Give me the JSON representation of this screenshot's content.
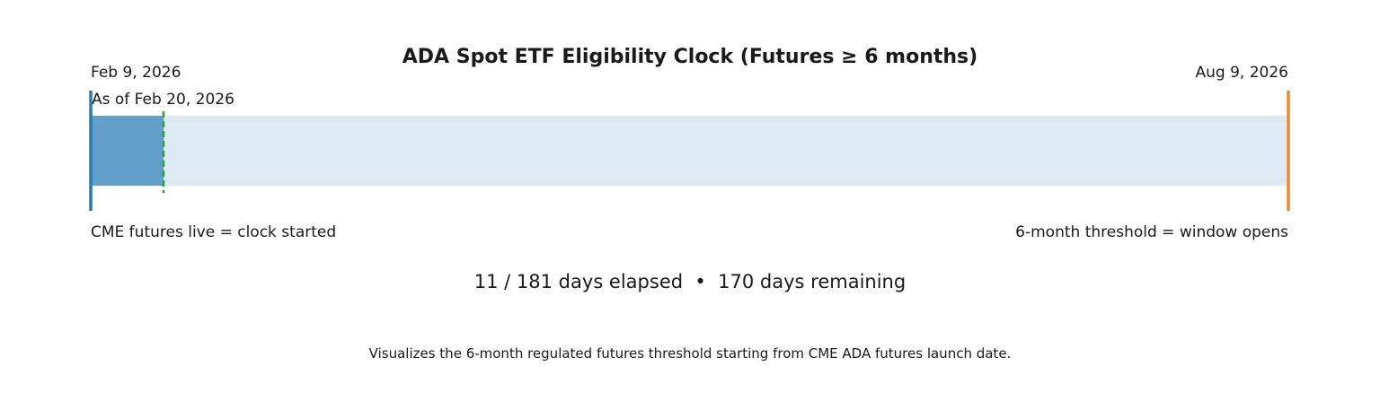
{
  "chart_data": {
    "type": "bar",
    "title": "ADA Spot ETF Eligibility Clock (Futures ≥ 6 months)",
    "start_label": "Feb 9, 2026",
    "end_label": "Aug 9, 2026",
    "as_of_label": "As of Feb 20, 2026",
    "start_annotation": "CME futures live = clock started",
    "end_annotation": "6-month threshold = window opens",
    "total_days": 181,
    "elapsed_days": 11,
    "remaining_days": 170,
    "summary": "11 / 181 days elapsed  •  170 days remaining",
    "caption": "Visualizes the 6-month regulated futures threshold starting from CME ADA futures launch date.",
    "colors": {
      "elapsed": "#62a0cb",
      "remaining": "#dde9f3",
      "start_line": "#2a7ab5",
      "end_line": "#f28a2c",
      "today_line": "#2ca02c"
    }
  }
}
